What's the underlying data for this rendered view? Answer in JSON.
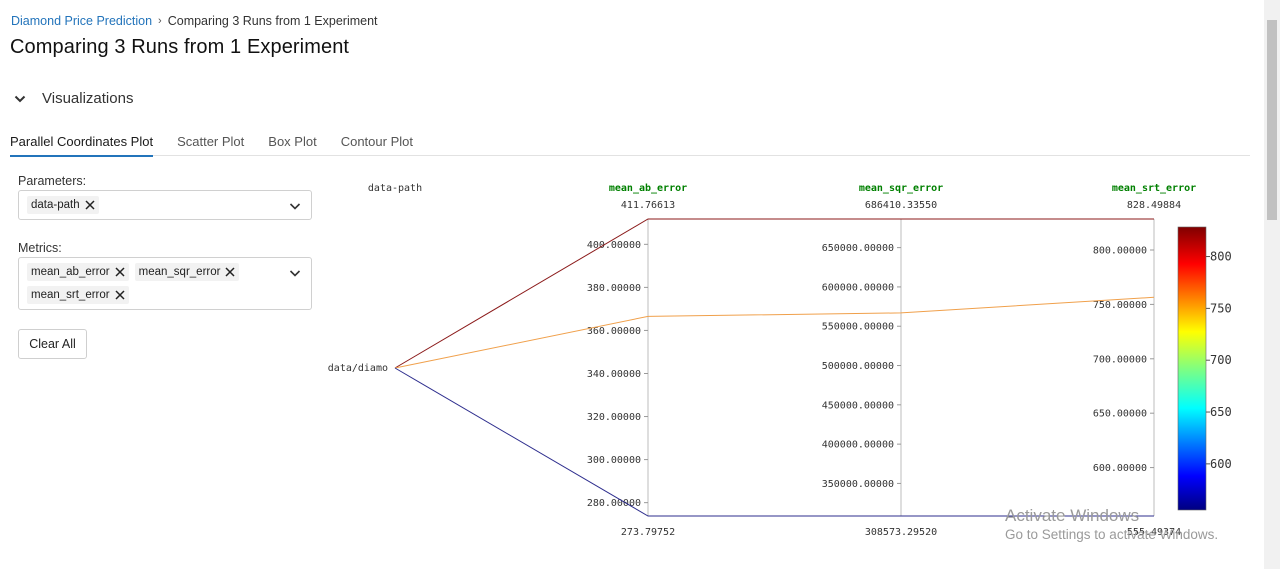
{
  "breadcrumb": {
    "parent": "Diamond Price Prediction",
    "current": "Comparing 3 Runs from 1 Experiment"
  },
  "page_title": "Comparing 3 Runs from 1 Experiment",
  "section": {
    "label": "Visualizations"
  },
  "tabs": [
    {
      "label": "Parallel Coordinates Plot",
      "active": true
    },
    {
      "label": "Scatter Plot",
      "active": false
    },
    {
      "label": "Box Plot",
      "active": false
    },
    {
      "label": "Contour Plot",
      "active": false
    }
  ],
  "parameters": {
    "label": "Parameters:",
    "selected": [
      "data-path"
    ]
  },
  "metrics": {
    "label": "Metrics:",
    "selected": [
      "mean_ab_error",
      "mean_sqr_error",
      "mean_srt_error"
    ]
  },
  "clear_all_label": "Clear All",
  "chart_data": {
    "type": "parallel_coordinates",
    "dimensions": [
      {
        "name": "data-path",
        "categorical": true,
        "categories": [
          "data/diamo"
        ]
      },
      {
        "name": "mean_ab_error",
        "max_label": "411.76613",
        "min_label": "273.79752",
        "range": [
          273.79752,
          411.76613
        ],
        "ticks": [
          280,
          300,
          320,
          340,
          360,
          380,
          400
        ],
        "tick_labels": [
          "280.00000",
          "300.00000",
          "320.00000",
          "340.00000",
          "360.00000",
          "380.00000",
          "400.00000"
        ]
      },
      {
        "name": "mean_sqr_error",
        "max_label": "686410.33550",
        "min_label": "308573.29520",
        "range": [
          308573.2952,
          686410.3355
        ],
        "ticks": [
          350000,
          400000,
          450000,
          500000,
          550000,
          600000,
          650000
        ],
        "tick_labels": [
          "350000.00000",
          "400000.00000",
          "450000.00000",
          "500000.00000",
          "550000.00000",
          "600000.00000",
          "650000.00000"
        ]
      },
      {
        "name": "mean_srt_error",
        "max_label": "828.49884",
        "min_label": "555.49374",
        "range": [
          555.49374,
          828.49884
        ],
        "ticks": [
          600,
          650,
          700,
          750,
          800
        ],
        "tick_labels": [
          "600.00000",
          "650.00000",
          "700.00000",
          "750.00000",
          "800.00000"
        ]
      }
    ],
    "runs": [
      {
        "data-path": "data/diamo",
        "mean_ab_error": 411.76613,
        "mean_sqr_error": 686410.3355,
        "mean_srt_error": 828.49884,
        "color": "#8b1a1a"
      },
      {
        "data-path": "data/diamo",
        "mean_ab_error": 366.5,
        "mean_sqr_error": 567000,
        "mean_srt_error": 756.5,
        "color": "#f0a04b"
      },
      {
        "data-path": "data/diamo",
        "mean_ab_error": 273.79752,
        "mean_sqr_error": 308573.2952,
        "mean_srt_error": 555.49374,
        "color": "#2e2e8e"
      }
    ],
    "colorbar": {
      "min": 555.49374,
      "max": 828.49884,
      "ticks": [
        600,
        650,
        700,
        750,
        800
      ],
      "tick_labels": [
        "600",
        "650",
        "700",
        "750",
        "800"
      ]
    },
    "label_color": "#008000"
  },
  "watermark": {
    "line1": "Activate Windows",
    "line2": "Go to Settings to activate Windows."
  },
  "colors": {
    "link": "#2374bb",
    "tab_underline": "#2374bb"
  }
}
